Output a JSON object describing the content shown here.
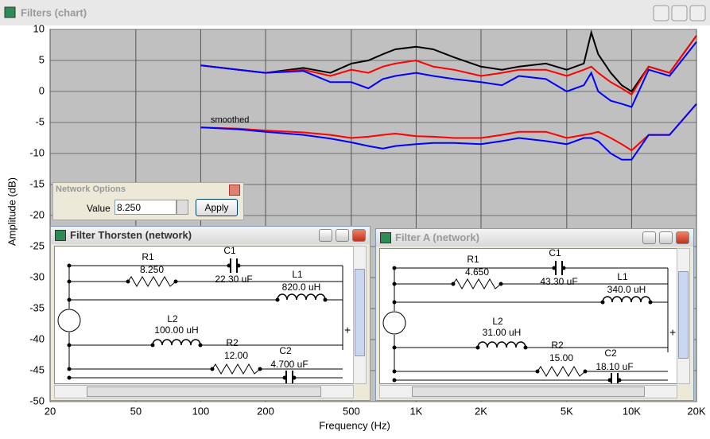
{
  "main_window": {
    "title": "Filters (chart)"
  },
  "chart_data": {
    "type": "line",
    "xlabel": "Frequency (Hz)",
    "ylabel": "Amplitude (dB)",
    "annotation": "smoothed",
    "log_x": true,
    "grid": true,
    "background": "#c0c0c0",
    "xlim": [
      20,
      20000
    ],
    "ylim": [
      -50,
      10
    ],
    "xticks": [
      20,
      50,
      100,
      200,
      500,
      {
        "value": 1000,
        "label": "1K"
      },
      {
        "value": 2000,
        "label": "2K"
      },
      {
        "value": 5000,
        "label": "5K"
      },
      {
        "value": 10000,
        "label": "10K"
      },
      {
        "value": 20000,
        "label": "20K"
      }
    ],
    "yticks": [
      10,
      5,
      0,
      -5,
      -10,
      -15,
      -20,
      -25,
      -30,
      -35,
      -40,
      -45,
      -50
    ],
    "x": [
      100,
      150,
      200,
      300,
      400,
      500,
      600,
      700,
      800,
      1000,
      1200,
      1500,
      2000,
      2500,
      3000,
      4000,
      5000,
      6000,
      6500,
      7000,
      8000,
      9000,
      10000,
      12000,
      15000,
      20000
    ],
    "series": [
      {
        "color": "#000000",
        "values": [
          4.2,
          3.5,
          3,
          3.8,
          3,
          4.5,
          5,
          6,
          6.8,
          7.2,
          6.8,
          5.5,
          4,
          3.5,
          4,
          4.5,
          3.5,
          4.5,
          9.5,
          6,
          3,
          1,
          0,
          4,
          3,
          9
        ]
      },
      {
        "color": "#ff0000",
        "values": [
          4.2,
          3.5,
          3,
          3.5,
          2.5,
          3.5,
          3,
          4,
          4.5,
          5,
          4,
          3.5,
          2.5,
          3,
          3.5,
          3.5,
          2.5,
          3.5,
          4,
          3,
          1.5,
          0.5,
          -0.5,
          4,
          3,
          9
        ]
      },
      {
        "color": "#0000ff",
        "values": [
          4.2,
          3.5,
          3,
          3.3,
          1.5,
          1.5,
          0.5,
          2,
          2.5,
          3,
          2.5,
          2,
          1.5,
          1,
          2.5,
          2,
          0,
          1,
          3,
          0,
          -1.5,
          -2,
          -2.5,
          3.5,
          2.5,
          8
        ]
      },
      {
        "color": "#ff0000",
        "values": [
          -5.8,
          -6,
          -6.3,
          -6.6,
          -7,
          -7.5,
          -7.3,
          -7,
          -6.8,
          -7.2,
          -7.3,
          -7.5,
          -7.5,
          -7,
          -6.5,
          -6.5,
          -7.5,
          -7,
          -6.8,
          -6.5,
          -7.5,
          -8.5,
          -9.5,
          -7,
          -7,
          -2
        ]
      },
      {
        "color": "#0000ff",
        "values": [
          -5.8,
          -6.1,
          -6.5,
          -7,
          -7.6,
          -8.2,
          -8.8,
          -9.2,
          -8.8,
          -8.5,
          -8.3,
          -8.3,
          -8.5,
          -8,
          -7.5,
          -8,
          -8.5,
          -7.5,
          -7.5,
          -8,
          -10,
          -11,
          -11,
          -7,
          -7,
          -2
        ]
      }
    ]
  },
  "network_options": {
    "title": "Network Options",
    "label": "Value",
    "value": "8.250",
    "button": "Apply"
  },
  "networks": [
    {
      "title": "Filter Thorsten (network)",
      "components": [
        {
          "name": "R1",
          "value": "8.250"
        },
        {
          "name": "C1",
          "value": "22.30 uF"
        },
        {
          "name": "L1",
          "value": "820.0 uH"
        },
        {
          "name": "L2",
          "value": "100.00 uH"
        },
        {
          "name": "R2",
          "value": "12.00"
        },
        {
          "name": "C2",
          "value": "4.700 uF"
        }
      ]
    },
    {
      "title": "Filter A (network)",
      "components": [
        {
          "name": "R1",
          "value": "4.650"
        },
        {
          "name": "C1",
          "value": "43.30 uF"
        },
        {
          "name": "L1",
          "value": "340.0 uH"
        },
        {
          "name": "L2",
          "value": "31.00 uH"
        },
        {
          "name": "R2",
          "value": "15.00"
        },
        {
          "name": "C2",
          "value": "18.10 uF"
        }
      ]
    }
  ]
}
